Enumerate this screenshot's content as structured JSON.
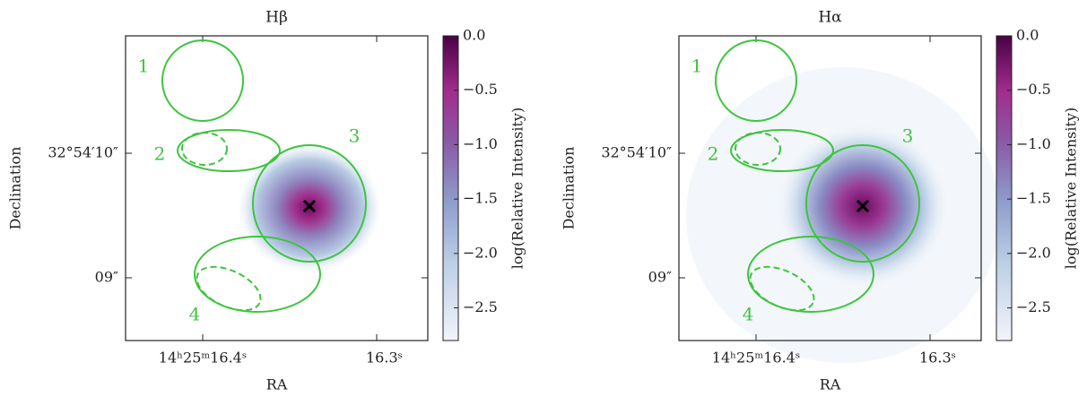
{
  "chart_data": [
    {
      "type": "image",
      "title": "Hβ",
      "xlabel": "RA",
      "ylabel": "Declination",
      "xticks": [
        "14ʰ25ᵐ16.4ˢ",
        "16.3ˢ"
      ],
      "yticks": [
        "32°54′10″",
        "09″"
      ],
      "regions": [
        "1",
        "2",
        "3",
        "4"
      ],
      "colorbar_label": "log(Relative Intensity)",
      "clim": [
        -2.8,
        0
      ],
      "cticks": [
        {
          "value": 0,
          "label": "0.0"
        },
        {
          "value": -0.5,
          "label": "−0.5"
        },
        {
          "value": -1,
          "label": "−1.0"
        },
        {
          "value": -1.5,
          "label": "−1.5"
        },
        {
          "value": -2,
          "label": "−2.0"
        },
        {
          "value": -2.5,
          "label": "−2.5"
        }
      ],
      "region_color": "#3ec43e"
    },
    {
      "type": "image",
      "title": "Hα",
      "xlabel": "RA",
      "ylabel": "Declination",
      "xticks": [
        "14ʰ25ᵐ16.4ˢ",
        "16.3ˢ"
      ],
      "yticks": [
        "32°54′10″",
        "09″"
      ],
      "regions": [
        "1",
        "2",
        "3",
        "4"
      ],
      "colorbar_label": "log(Relative Intensity)",
      "clim": [
        -2.8,
        0
      ],
      "cticks": [
        {
          "value": 0,
          "label": "0.0"
        },
        {
          "value": -0.5,
          "label": "−0.5"
        },
        {
          "value": -1,
          "label": "−1.0"
        },
        {
          "value": -1.5,
          "label": "−1.5"
        },
        {
          "value": -2,
          "label": "−2.0"
        },
        {
          "value": -2.5,
          "label": "−2.5"
        }
      ],
      "region_color": "#3ec43e"
    }
  ]
}
